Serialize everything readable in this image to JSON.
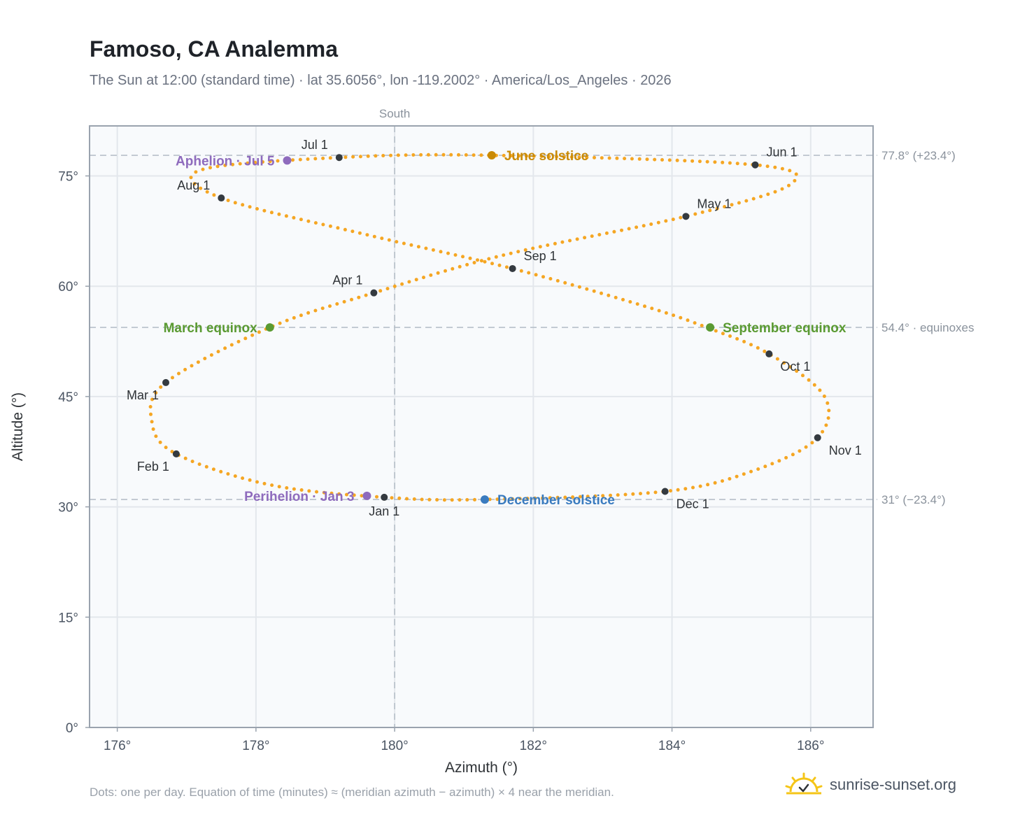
{
  "header": {
    "title": "Famoso, CA Analemma",
    "subtitle": "The Sun at 12:00 (standard time) · lat 35.6056°, lon -119.2002° · America/Los_Angeles · 2026"
  },
  "footer": {
    "note": "Dots: one per day. Equation of time (minutes) ≈ (meridian azimuth − azimuth) × 4 near the meridian.",
    "brand": "sunrise-sunset.org"
  },
  "colors": {
    "path": "#f5a623",
    "month": "#343a40",
    "june": "#c98a06",
    "december": "#3a7bbf",
    "equinox": "#5a9a32",
    "apsis": "#8e6bbd",
    "refline": "#b7c0c9",
    "plot_bg": "#f8fafc",
    "grid": "#e3e7ec",
    "frame": "#9aa3ae"
  },
  "chart_data": {
    "type": "scatter",
    "title": "Famoso, CA Analemma",
    "xlabel": "Azimuth (°)",
    "ylabel": "Altitude (°)",
    "xlim": [
      175.6,
      186.9
    ],
    "ylim": [
      0,
      81.8
    ],
    "x_ticks": [
      176,
      178,
      180,
      182,
      184,
      186
    ],
    "x_tick_labels": [
      "176°",
      "178°",
      "180°",
      "182°",
      "184°",
      "186°"
    ],
    "y_ticks": [
      0,
      15,
      30,
      45,
      60,
      75
    ],
    "y_tick_labels": [
      "0°",
      "15°",
      "30°",
      "45°",
      "60°",
      "75°"
    ],
    "grid": true,
    "meridian": {
      "azimuth": 180,
      "label": "South"
    },
    "reference_lines": [
      {
        "altitude": 77.8,
        "label": "77.8° (+23.4°)"
      },
      {
        "altitude": 54.4,
        "label": "54.4° · equinoxes"
      },
      {
        "altitude": 31.0,
        "label": "31° (−23.4°)"
      }
    ],
    "daily_path": [
      {
        "date": "Jan 1",
        "az": 179.85,
        "alt": 31.3
      },
      {
        "date": "Jan 15",
        "az": 178.2,
        "alt": 33.0
      },
      {
        "date": "Feb 1",
        "az": 176.85,
        "alt": 37.2
      },
      {
        "date": "Feb 12",
        "az": 176.5,
        "alt": 41.5
      },
      {
        "date": "Mar 1",
        "az": 176.7,
        "alt": 46.9
      },
      {
        "date": "Mar 20",
        "az": 178.2,
        "alt": 54.4
      },
      {
        "date": "Apr 1",
        "az": 179.7,
        "alt": 59.1
      },
      {
        "date": "Apr 15",
        "az": 181.6,
        "alt": 64.3
      },
      {
        "date": "May 1",
        "az": 184.2,
        "alt": 69.5
      },
      {
        "date": "May 15",
        "az": 185.7,
        "alt": 73.8
      },
      {
        "date": "Jun 1",
        "az": 185.2,
        "alt": 76.5
      },
      {
        "date": "Jun 21",
        "az": 181.4,
        "alt": 77.8
      },
      {
        "date": "Jul 1",
        "az": 179.2,
        "alt": 77.5
      },
      {
        "date": "Jul 15",
        "az": 177.2,
        "alt": 75.8
      },
      {
        "date": "Aug 1",
        "az": 177.5,
        "alt": 72.0
      },
      {
        "date": "Aug 15",
        "az": 179.6,
        "alt": 67.0
      },
      {
        "date": "Sep 1",
        "az": 181.7,
        "alt": 62.4
      },
      {
        "date": "Sep 15",
        "az": 183.6,
        "alt": 57.3
      },
      {
        "date": "Sep 22",
        "az": 184.5,
        "alt": 54.4
      },
      {
        "date": "Oct 1",
        "az": 185.4,
        "alt": 50.8
      },
      {
        "date": "Oct 15",
        "az": 186.2,
        "alt": 45.0
      },
      {
        "date": "Nov 1",
        "az": 186.1,
        "alt": 39.4
      },
      {
        "date": "Nov 15",
        "az": 185.2,
        "alt": 35.0
      },
      {
        "date": "Dec 1",
        "az": 183.9,
        "alt": 32.1
      },
      {
        "date": "Dec 21",
        "az": 181.3,
        "alt": 31.0
      },
      {
        "date": "Jan 1",
        "az": 179.85,
        "alt": 31.3
      }
    ],
    "month_markers": [
      {
        "label": "Jan 1",
        "az": 179.85,
        "alt": 31.3,
        "anchor": "below"
      },
      {
        "label": "Feb 1",
        "az": 176.85,
        "alt": 37.2,
        "anchor": "below-left"
      },
      {
        "label": "Mar 1",
        "az": 176.7,
        "alt": 46.9,
        "anchor": "below-left"
      },
      {
        "label": "Apr 1",
        "az": 179.7,
        "alt": 59.1,
        "anchor": "above-left"
      },
      {
        "label": "May 1",
        "az": 184.2,
        "alt": 69.5,
        "anchor": "above-right"
      },
      {
        "label": "Jun 1",
        "az": 185.2,
        "alt": 76.5,
        "anchor": "above-right"
      },
      {
        "label": "Jul 1",
        "az": 179.2,
        "alt": 77.5,
        "anchor": "above-left"
      },
      {
        "label": "Aug 1",
        "az": 177.5,
        "alt": 72.0,
        "anchor": "above-left"
      },
      {
        "label": "Sep 1",
        "az": 181.7,
        "alt": 62.4,
        "anchor": "above-right"
      },
      {
        "label": "Oct 1",
        "az": 185.4,
        "alt": 50.8,
        "anchor": "below-right"
      },
      {
        "label": "Nov 1",
        "az": 186.1,
        "alt": 39.4,
        "anchor": "below-right"
      },
      {
        "label": "Dec 1",
        "az": 183.9,
        "alt": 32.1,
        "anchor": "below-right"
      }
    ],
    "events": [
      {
        "label": "June solstice",
        "az": 181.4,
        "alt": 77.8,
        "kind": "june",
        "anchor": "right"
      },
      {
        "label": "December solstice",
        "az": 181.3,
        "alt": 31.0,
        "kind": "december",
        "anchor": "right"
      },
      {
        "label": "March equinox",
        "az": 178.2,
        "alt": 54.4,
        "kind": "equinox",
        "anchor": "left"
      },
      {
        "label": "September equinox",
        "az": 184.55,
        "alt": 54.4,
        "kind": "equinox",
        "anchor": "right"
      },
      {
        "label": "Aphelion · Jul 5",
        "az": 178.45,
        "alt": 77.1,
        "kind": "apsis",
        "anchor": "left"
      },
      {
        "label": "Perihelion · Jan 3",
        "az": 179.6,
        "alt": 31.5,
        "kind": "apsis",
        "anchor": "left"
      }
    ]
  }
}
